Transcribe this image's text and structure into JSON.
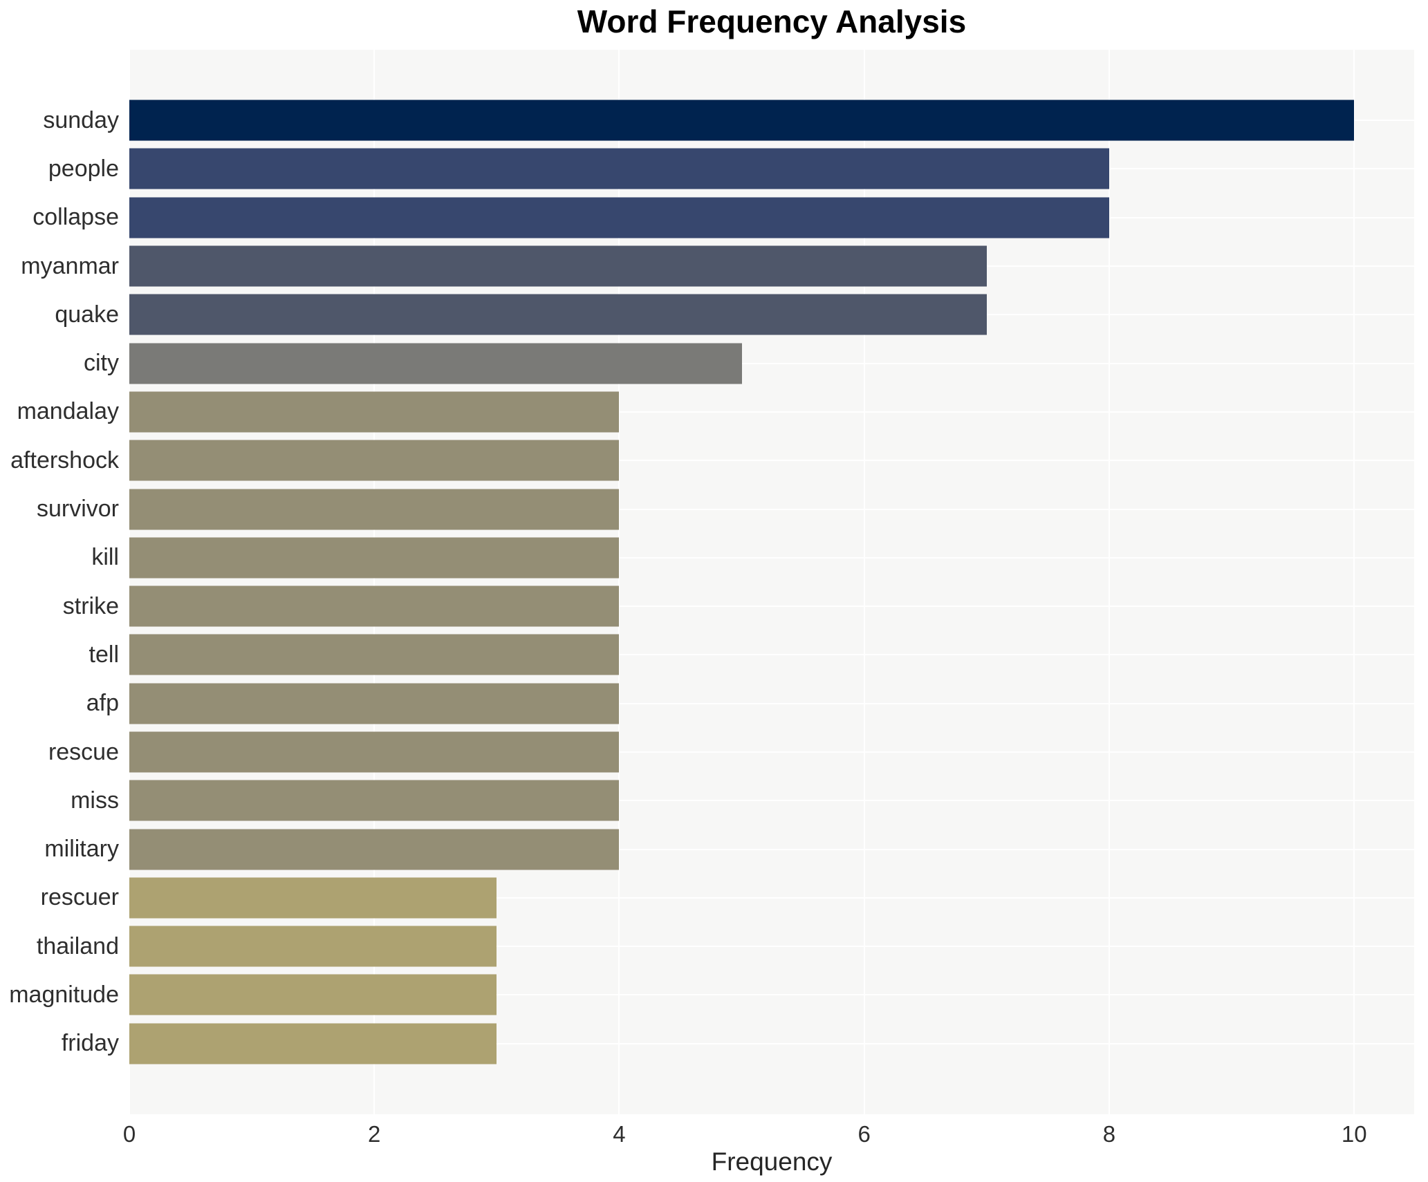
{
  "colors": {
    "plot_background": "#f7f7f6",
    "grid": "#ffffff",
    "page_background": "#ffffff",
    "text": "#2e2e2e",
    "title_text": "#000000"
  },
  "chart_data": {
    "type": "bar",
    "orientation": "horizontal",
    "title": "Word Frequency Analysis",
    "xlabel": "Frequency",
    "ylabel": "",
    "xlim": [
      0,
      10.49
    ],
    "x_ticks": [
      0,
      2,
      4,
      6,
      8,
      10
    ],
    "grid": true,
    "legend": false,
    "categories": [
      "sunday",
      "people",
      "collapse",
      "myanmar",
      "quake",
      "city",
      "mandalay",
      "aftershock",
      "survivor",
      "kill",
      "strike",
      "tell",
      "afp",
      "rescue",
      "miss",
      "military",
      "rescuer",
      "thailand",
      "magnitude",
      "friday"
    ],
    "values": [
      10,
      8,
      8,
      7,
      7,
      5,
      4,
      4,
      4,
      4,
      4,
      4,
      4,
      4,
      4,
      4,
      3,
      3,
      3,
      3
    ],
    "bar_colors": [
      "#00234f",
      "#37476e",
      "#37476e",
      "#4f576a",
      "#4f576a",
      "#7a7a77",
      "#948e75",
      "#948e75",
      "#948e75",
      "#948e75",
      "#948e75",
      "#948e75",
      "#948e75",
      "#948e75",
      "#948e75",
      "#948e75",
      "#ada271",
      "#ada271",
      "#ada271",
      "#ada271"
    ]
  }
}
